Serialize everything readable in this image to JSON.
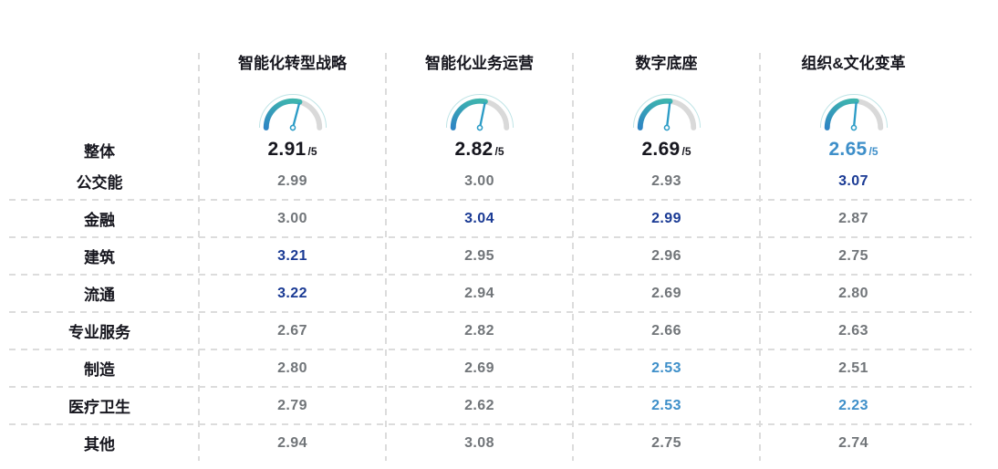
{
  "header": {
    "overall_label": "整体",
    "scale_suffix": "/5",
    "columns": [
      {
        "title": "智能化转型战略",
        "score": "2.91",
        "gauge_value": 2.91
      },
      {
        "title": "智能化业务运营",
        "score": "2.82",
        "gauge_value": 2.82
      },
      {
        "title": "数字底座",
        "score": "2.69",
        "gauge_value": 2.69
      },
      {
        "title": "组织&文化变革",
        "score": "2.65",
        "gauge_value": 2.65
      }
    ]
  },
  "rows": [
    {
      "label": "公交能",
      "cells": [
        {
          "value": "2.99"
        },
        {
          "value": "3.00"
        },
        {
          "value": "2.93"
        },
        {
          "value": "3.07"
        }
      ]
    },
    {
      "label": "金融",
      "cells": [
        {
          "value": "3.00"
        },
        {
          "value": "3.04"
        },
        {
          "value": "2.99"
        },
        {
          "value": "2.87"
        }
      ]
    },
    {
      "label": "建筑",
      "cells": [
        {
          "value": "3.21"
        },
        {
          "value": "2.95"
        },
        {
          "value": "2.96"
        },
        {
          "value": "2.75"
        }
      ]
    },
    {
      "label": "流通",
      "cells": [
        {
          "value": "3.22"
        },
        {
          "value": "2.94"
        },
        {
          "value": "2.69"
        },
        {
          "value": "2.80"
        }
      ]
    },
    {
      "label": "专业服务",
      "cells": [
        {
          "value": "2.67"
        },
        {
          "value": "2.82"
        },
        {
          "value": "2.66"
        },
        {
          "value": "2.63"
        }
      ]
    },
    {
      "label": "制造",
      "cells": [
        {
          "value": "2.80"
        },
        {
          "value": "2.69"
        },
        {
          "value": "2.53"
        },
        {
          "value": "2.51"
        }
      ]
    },
    {
      "label": "医疗卫生",
      "cells": [
        {
          "value": "2.79"
        },
        {
          "value": "2.62"
        },
        {
          "value": "2.53"
        },
        {
          "value": "2.23"
        }
      ]
    },
    {
      "label": "其他",
      "cells": [
        {
          "value": "2.94"
        },
        {
          "value": "3.08"
        },
        {
          "value": "2.75"
        },
        {
          "value": "2.74"
        }
      ]
    }
  ],
  "colors": {
    "dark_text": "#16161e",
    "gray_value": "#717579",
    "navy_highlight": "#1a3a94",
    "blue_highlight": "#3e8fc9",
    "gauge_track": "#d9d9d9",
    "gauge_blue": "#2e85c4",
    "gauge_teal": "#3eb5ae",
    "needle": "#2c9cc6",
    "dashed_line": "#dcdcdc"
  },
  "chart_data": {
    "type": "table",
    "title": "",
    "columns": [
      "智能化转型战略",
      "智能化业务运营",
      "数字底座",
      "组织&文化变革"
    ],
    "scale_max": 5,
    "gauges": {
      "type": "gauge",
      "values": [
        2.91,
        2.82,
        2.69,
        2.65
      ],
      "range": [
        0,
        5
      ]
    },
    "overall": {
      "label": "整体",
      "values": [
        2.91,
        2.82,
        2.69,
        2.65
      ]
    },
    "rows": [
      {
        "label": "公交能",
        "values": [
          2.99,
          3.0,
          2.93,
          3.07
        ]
      },
      {
        "label": "金融",
        "values": [
          3.0,
          3.04,
          2.99,
          2.87
        ]
      },
      {
        "label": "建筑",
        "values": [
          3.21,
          2.95,
          2.96,
          2.75
        ]
      },
      {
        "label": "流通",
        "values": [
          3.22,
          2.94,
          2.69,
          2.8
        ]
      },
      {
        "label": "专业服务",
        "values": [
          2.67,
          2.82,
          2.66,
          2.63
        ]
      },
      {
        "label": "制造",
        "values": [
          2.8,
          2.69,
          2.53,
          2.51
        ]
      },
      {
        "label": "医疗卫生",
        "values": [
          2.79,
          2.62,
          2.53,
          2.23
        ]
      },
      {
        "label": "其他",
        "values": [
          2.94,
          3.08,
          2.75,
          2.74
        ]
      }
    ],
    "highlighted_navy": [
      [
        "公交能",
        3
      ],
      [
        "金融",
        1
      ],
      [
        "金融",
        2
      ],
      [
        "建筑",
        0
      ],
      [
        "流通",
        0
      ]
    ],
    "highlighted_blue": [
      [
        "整体",
        3
      ],
      [
        "制造",
        2
      ],
      [
        "医疗卫生",
        2
      ],
      [
        "医疗卫生",
        3
      ]
    ]
  }
}
